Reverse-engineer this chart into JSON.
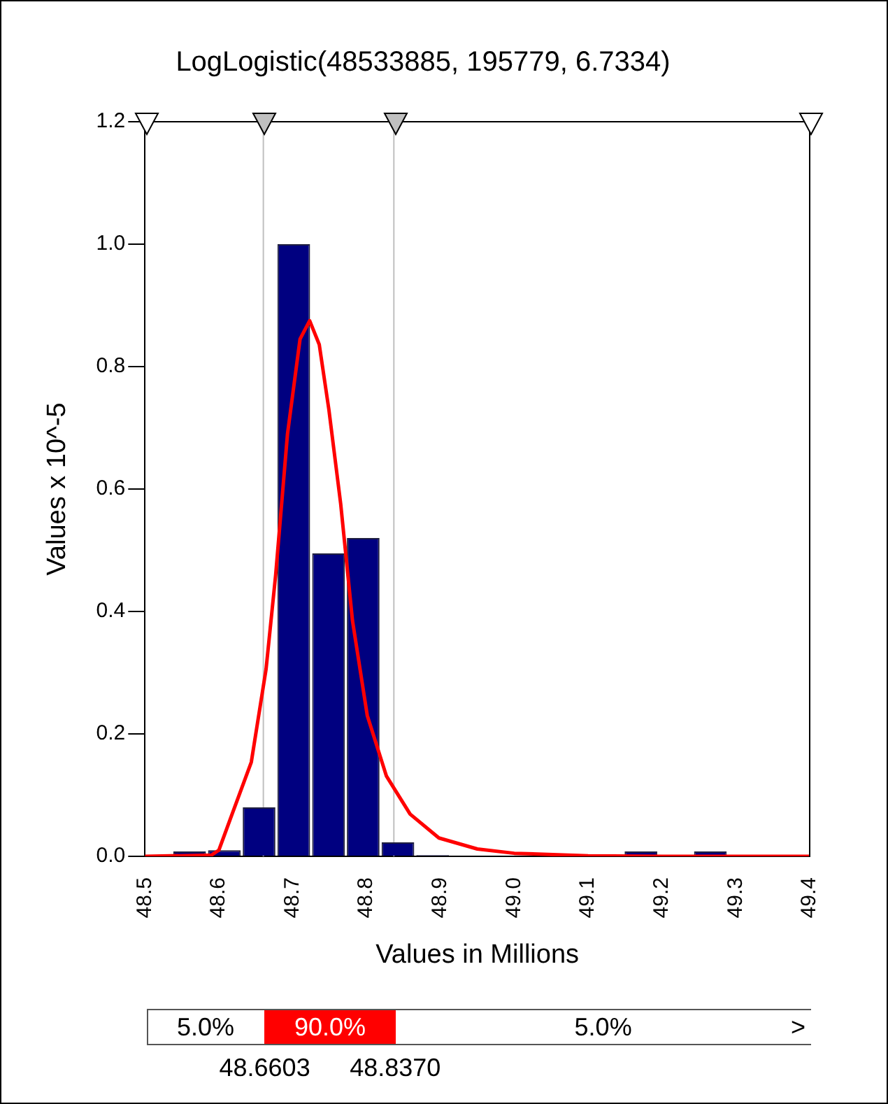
{
  "chart_data": {
    "type": "histogram",
    "title": "LogLogistic(48533885, 195779, 6.7334)",
    "xlabel": "Values in Millions",
    "ylabel": "Values x 10^-5",
    "bins": [
      48.537,
      48.584,
      48.631,
      48.678,
      48.725,
      48.772,
      48.819,
      48.866,
      48.913,
      48.96,
      49.007,
      49.054,
      49.101,
      49.148,
      49.195,
      49.242,
      49.289
    ],
    "values": [
      0.008,
      0.01,
      0.08,
      1.0,
      0.495,
      0.52,
      0.023,
      0.002,
      0,
      0,
      0,
      0,
      0,
      0.008,
      0,
      0.008
    ],
    "color": "#000080",
    "series": [
      {
        "type": "line",
        "color": "#ff0000",
        "x": [
          48.5,
          48.59,
          48.6,
          48.618,
          48.644,
          48.664,
          48.677,
          48.693,
          48.71,
          48.723,
          48.736,
          48.749,
          48.765,
          48.781,
          48.801,
          48.827,
          48.859,
          48.898,
          48.95,
          49.0,
          49.1,
          49.2,
          49.4
        ],
        "values": [
          0,
          0.002,
          0.01,
          0.069,
          0.154,
          0.306,
          0.46,
          0.69,
          0.845,
          0.875,
          0.836,
          0.73,
          0.576,
          0.385,
          0.23,
          0.131,
          0.069,
          0.03,
          0.012,
          0.005,
          0.001,
          0,
          0
        ]
      }
    ],
    "xlim": [
      48.5,
      49.4
    ],
    "xticks": [
      48.5,
      48.6,
      48.7,
      48.8,
      48.9,
      {
        "value": 49,
        "label": "49.0"
      },
      49.1,
      49.2,
      49.3,
      49.4
    ],
    "ylim": [
      0,
      1.2
    ],
    "yticks": [
      {
        "value": 0,
        "label": "0.0"
      },
      0.2,
      0.4,
      0.6,
      0.8,
      {
        "value": 1,
        "label": "1.0"
      },
      1.2
    ],
    "ref_lines": [
      {
        "axis": "x",
        "value": 48.6603,
        "color": "#c0c0c0"
      },
      {
        "axis": "x",
        "value": 48.837,
        "color": "#c0c0c0"
      }
    ],
    "annotations": [
      "5.0%",
      "90.0%",
      "5.0%",
      ">",
      "48.6603",
      "48.8370"
    ],
    "grid": false,
    "legend": false
  }
}
